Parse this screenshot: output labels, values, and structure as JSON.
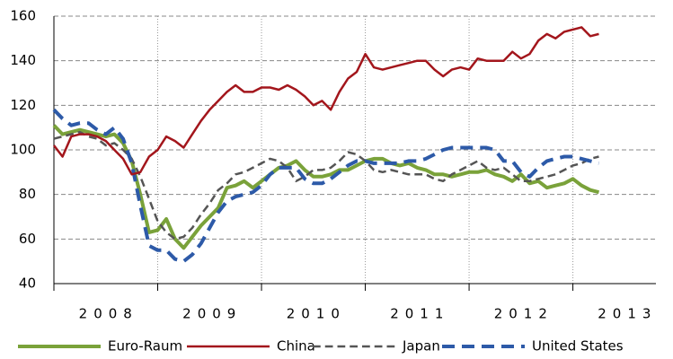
{
  "chart_data": {
    "type": "line",
    "x": [
      2008,
      2008.083,
      2008.167,
      2008.25,
      2008.333,
      2008.417,
      2008.5,
      2008.583,
      2008.667,
      2008.75,
      2008.833,
      2008.917,
      2009,
      2009.083,
      2009.167,
      2009.25,
      2009.333,
      2009.417,
      2009.5,
      2009.583,
      2009.667,
      2009.75,
      2009.833,
      2009.917,
      2010,
      2010.083,
      2010.167,
      2010.25,
      2010.333,
      2010.417,
      2010.5,
      2010.583,
      2010.667,
      2010.75,
      2010.833,
      2010.917,
      2011,
      2011.083,
      2011.167,
      2011.25,
      2011.333,
      2011.417,
      2011.5,
      2011.583,
      2011.667,
      2011.75,
      2011.833,
      2011.917,
      2012,
      2012.083,
      2012.167,
      2012.25,
      2012.333,
      2012.417,
      2012.5,
      2012.583,
      2012.667,
      2012.75,
      2012.833,
      2012.917,
      2013,
      2013.083,
      2013.167,
      2013.25
    ],
    "series": [
      {
        "name": "Euro-Raum",
        "color": "#7aa23a",
        "dash": false,
        "width": 4,
        "values": [
          111,
          107,
          108,
          109,
          108,
          107,
          106,
          107,
          103,
          95,
          80,
          63,
          64,
          69,
          60,
          56,
          61,
          66,
          70,
          74,
          83,
          84,
          86,
          83,
          86,
          89,
          92,
          93,
          95,
          91,
          88,
          88,
          89,
          91,
          91,
          93,
          95,
          96,
          96,
          94,
          93,
          94,
          92,
          91,
          89,
          89,
          88,
          89,
          90,
          90,
          91,
          89,
          88,
          86,
          89,
          85,
          86,
          83,
          84,
          85,
          87,
          84,
          82,
          81
        ]
      },
      {
        "name": "China",
        "color": "#a3161c",
        "dash": false,
        "width": 2.5,
        "values": [
          102,
          97,
          106,
          107,
          107,
          106,
          104,
          100,
          96,
          89,
          90,
          97,
          100,
          106,
          104,
          101,
          107,
          113,
          118,
          122,
          126,
          129,
          126,
          126,
          128,
          128,
          127,
          129,
          127,
          124,
          120,
          122,
          118,
          126,
          132,
          135,
          143,
          137,
          136,
          137,
          138,
          139,
          140,
          140,
          136,
          133,
          136,
          137,
          136,
          141,
          140,
          140,
          140,
          144,
          141,
          143,
          149,
          152,
          150,
          153,
          154,
          155,
          151,
          152
        ]
      },
      {
        "name": "Japan",
        "color": "#555555",
        "dash": true,
        "width": 2.5,
        "values": [
          105,
          106,
          107,
          108,
          106,
          105,
          102,
          103,
          100,
          96,
          88,
          78,
          68,
          63,
          60,
          61,
          65,
          71,
          76,
          82,
          85,
          89,
          90,
          92,
          94,
          96,
          95,
          92,
          86,
          88,
          91,
          91,
          92,
          95,
          99,
          98,
          95,
          91,
          90,
          91,
          90,
          89,
          89,
          89,
          87,
          86,
          89,
          91,
          93,
          95,
          92,
          91,
          92,
          89,
          86,
          86,
          87,
          88,
          89,
          91,
          93,
          94,
          96,
          97
        ]
      },
      {
        "name": "United States",
        "color": "#2d5aa8",
        "dash": true,
        "width": 4,
        "values": [
          118,
          114,
          111,
          112,
          112,
          109,
          107,
          110,
          105,
          94,
          75,
          57,
          55,
          55,
          51,
          50,
          53,
          58,
          65,
          72,
          77,
          79,
          80,
          81,
          84,
          89,
          92,
          92,
          92,
          87,
          85,
          85,
          87,
          90,
          93,
          95,
          95,
          94,
          94,
          94,
          94,
          95,
          95,
          96,
          98,
          100,
          101,
          101,
          101,
          101,
          101,
          100,
          95,
          95,
          90,
          88,
          92,
          95,
          96,
          97,
          97,
          96,
          95,
          94
        ]
      }
    ],
    "xlim": [
      2008,
      2013.8
    ],
    "xticks": [
      {
        "value": 2008.5,
        "label": "2008"
      },
      {
        "value": 2009.5,
        "label": "2009"
      },
      {
        "value": 2010.5,
        "label": "2010"
      },
      {
        "value": 2011.5,
        "label": "2011"
      },
      {
        "value": 2012.5,
        "label": "2012"
      },
      {
        "value": 2013.5,
        "label": "2013"
      }
    ],
    "xgrid": [
      2009,
      2010,
      2011,
      2012,
      2013
    ],
    "ylim": [
      40,
      160
    ],
    "yticks": [
      40,
      60,
      80,
      100,
      120,
      140,
      160
    ],
    "grid": true
  }
}
